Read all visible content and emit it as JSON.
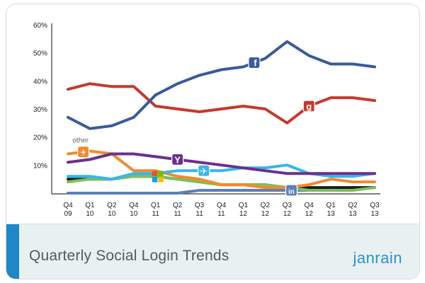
{
  "footer": {
    "title": "Quarterly Social Login Trends",
    "brand": "janrain"
  },
  "chart_data": {
    "type": "line",
    "title": "Quarterly Social Login Trends",
    "xlabel": "",
    "ylabel": "",
    "ylim": [
      0,
      60
    ],
    "y_ticks": [
      "60%",
      "50%",
      "40%",
      "30%",
      "20%",
      "10%"
    ],
    "y_tick_values": [
      60,
      50,
      40,
      30,
      20,
      10
    ],
    "grid": false,
    "categories": [
      [
        "Q4",
        "09"
      ],
      [
        "Q1",
        "10"
      ],
      [
        "Q2",
        "10"
      ],
      [
        "Q4",
        "10"
      ],
      [
        "Q1",
        "11"
      ],
      [
        "Q2",
        "11"
      ],
      [
        "Q3",
        "11"
      ],
      [
        "Q4",
        "11"
      ],
      [
        "Q1",
        "12"
      ],
      [
        "Q2",
        "12"
      ],
      [
        "Q3",
        "12"
      ],
      [
        "Q4",
        "12"
      ],
      [
        "Q1",
        "13"
      ],
      [
        "Q2",
        "13"
      ],
      [
        "Q3",
        "13"
      ]
    ],
    "series": [
      {
        "key": "facebook",
        "color": "#3b5a9b",
        "icon": "facebook-icon",
        "glyph": "f",
        "label": "",
        "values": [
          27,
          23,
          24,
          27,
          35,
          39,
          42,
          44,
          45,
          48,
          54,
          49,
          46,
          46,
          45
        ],
        "icon_index": 8.5
      },
      {
        "key": "google",
        "color": "#c6392b",
        "icon": "google-icon",
        "glyph": "g",
        "label": "",
        "values": [
          37,
          39,
          38,
          38,
          31,
          30,
          29,
          30,
          31,
          30,
          25,
          31,
          34,
          34,
          33
        ],
        "icon_index": 11
      },
      {
        "key": "yahoo",
        "color": "#6b2f8e",
        "icon": "yahoo-icon",
        "glyph": "Y",
        "label": "",
        "values": [
          11,
          12,
          14,
          14,
          13,
          12,
          11,
          10,
          9,
          8,
          7,
          7,
          7,
          7,
          7
        ],
        "icon_index": 5
      },
      {
        "key": "twitter",
        "color": "#35b7ea",
        "icon": "twitter-icon",
        "glyph": "t",
        "label": "",
        "values": [
          6,
          6,
          5,
          7,
          7,
          8,
          8,
          8,
          9,
          9,
          10,
          7,
          6,
          6,
          7
        ],
        "icon_index": 6.2
      },
      {
        "key": "other",
        "color": "#f38a2c",
        "icon": "google-plus-icon",
        "glyph": "+",
        "label": "other",
        "values": [
          14,
          15,
          14,
          8,
          8,
          6,
          5,
          3,
          3,
          2,
          2,
          3,
          5,
          4,
          4
        ],
        "icon_index": 0.7
      },
      {
        "key": "windows",
        "color": "#7cc05a",
        "icon": "windows-icon",
        "glyph": "w",
        "label": "",
        "values": [
          4,
          5,
          5,
          6,
          6,
          5,
          4,
          3,
          3,
          3,
          2,
          1,
          1,
          1,
          2
        ],
        "icon_index": 4.1
      },
      {
        "key": "aol",
        "color": "#1c1c1c",
        "icon": "",
        "glyph": "",
        "label": "",
        "values": [
          5,
          5,
          5,
          6,
          6,
          5,
          4,
          3,
          3,
          3,
          2,
          2,
          2,
          2,
          2
        ],
        "icon_index": -1
      },
      {
        "key": "linkedin",
        "color": "#5b7fbd",
        "icon": "linkedin-icon",
        "glyph": "in",
        "label": "",
        "values": [
          0,
          0,
          0,
          0,
          0,
          0,
          1,
          1,
          1,
          1,
          1,
          1,
          2,
          2,
          2
        ],
        "icon_index": 10.2
      }
    ]
  }
}
